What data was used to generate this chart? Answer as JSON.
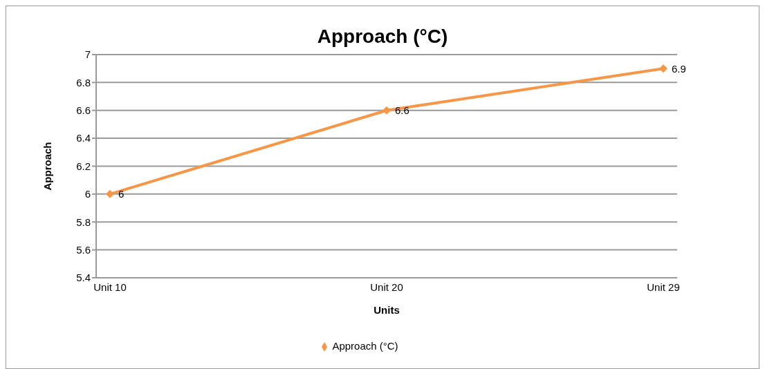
{
  "chart_data": {
    "type": "line",
    "title": "Approach (°C)",
    "xlabel": "Units",
    "ylabel": "Approach",
    "categories": [
      "Unit 10",
      "Unit 20",
      "Unit 29"
    ],
    "series": [
      {
        "name": "Approach (°C)",
        "color": "#f79646",
        "values": [
          6,
          6.6,
          6.9
        ]
      }
    ],
    "ylim": [
      5.4,
      7
    ],
    "yticks": [
      5.4,
      5.6,
      5.8,
      6,
      6.2,
      6.4,
      6.6,
      6.8,
      7
    ],
    "grid": "y",
    "legend": "bottom",
    "marker": "diamond",
    "data_labels": true
  }
}
